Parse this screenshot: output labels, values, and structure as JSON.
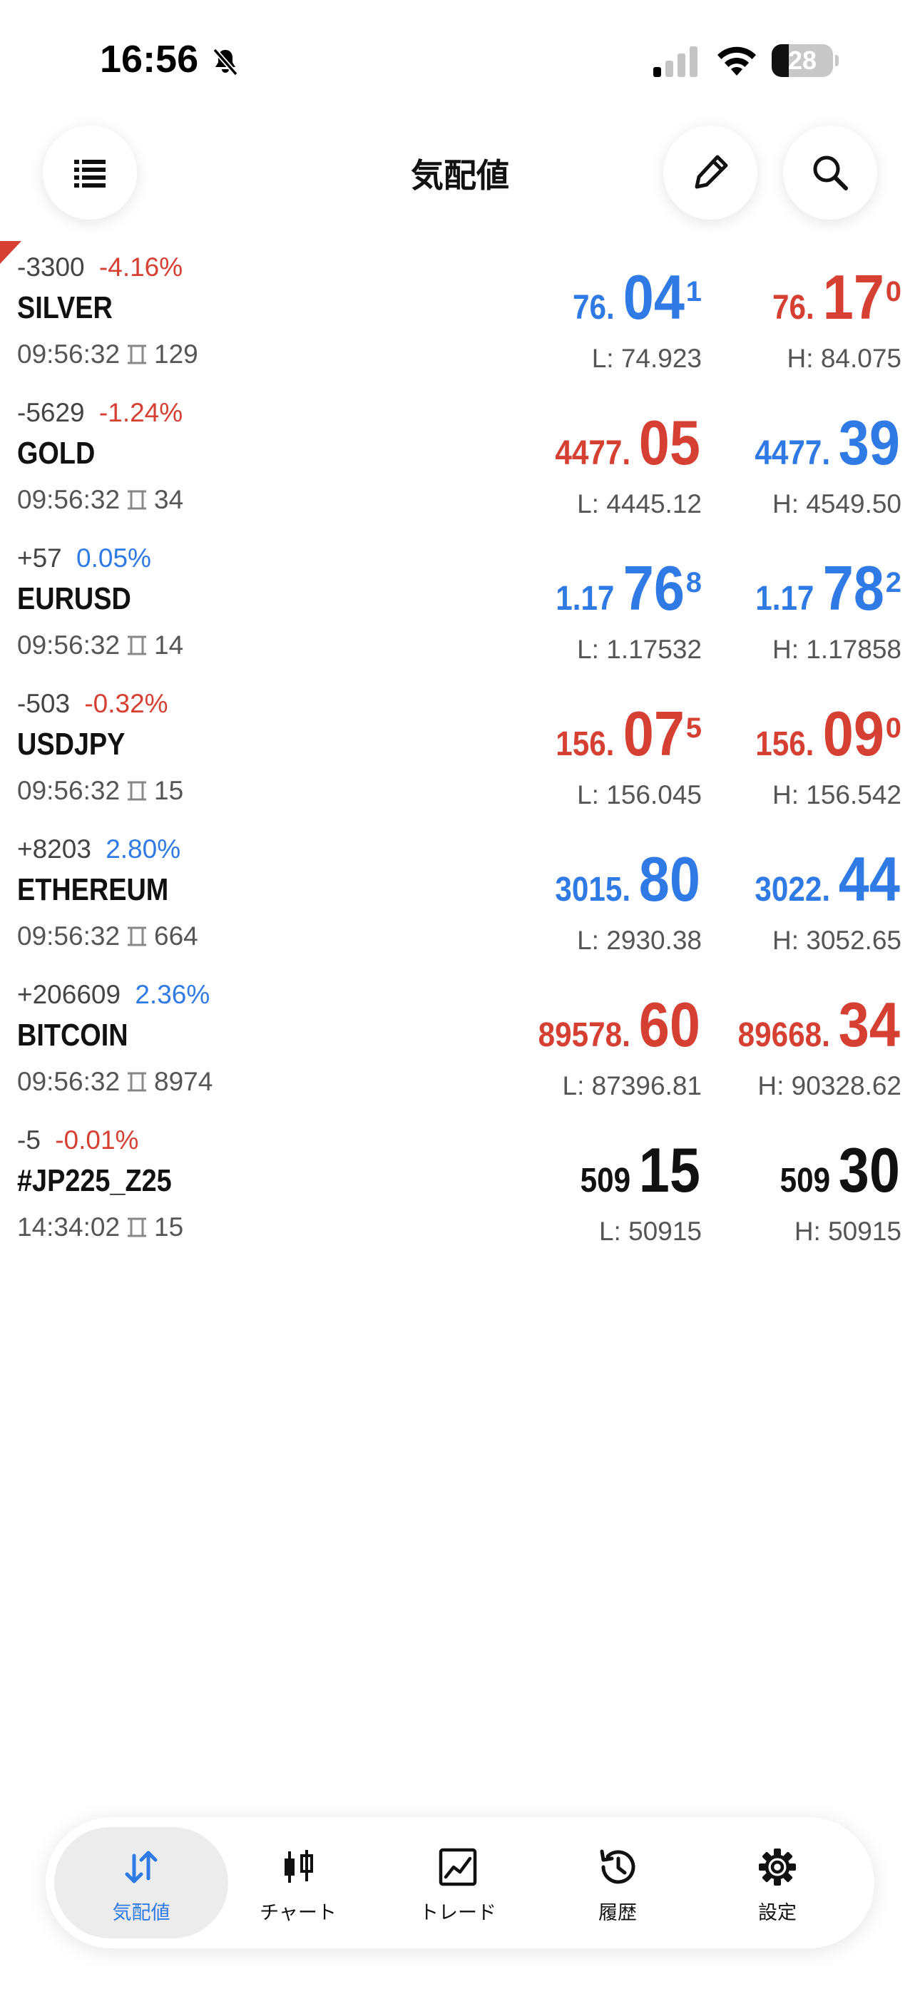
{
  "status_bar": {
    "time": "16:56",
    "battery": "28",
    "battery_level": 0.28,
    "signal_bars_active": 1,
    "icons": [
      "bell-slash-icon",
      "cellular-signal-icon",
      "wifi-icon",
      "battery-icon"
    ]
  },
  "header": {
    "title": "気配値",
    "icons": [
      "list-menu-icon",
      "pencil-icon",
      "search-icon"
    ]
  },
  "colors": {
    "up": "#2f7ae5",
    "down": "#d64032",
    "neutral": "#111111",
    "accent": "#2f7ae5",
    "corner_marker": "#d64032"
  },
  "quotes": [
    {
      "change_points": "-3300",
      "change_percent": "-4.16%",
      "change_dir": "down",
      "symbol": "SILVER",
      "time": "09:56:32",
      "spread": "129",
      "bid": {
        "small": "76.",
        "big": "04",
        "sup": "1",
        "dir": "up"
      },
      "ask": {
        "small": "76.",
        "big": "17",
        "sup": "0",
        "dir": "down"
      },
      "low": "L: 74.923",
      "high": "H: 84.075"
    },
    {
      "change_points": "-5629",
      "change_percent": "-1.24%",
      "change_dir": "down",
      "symbol": "GOLD",
      "time": "09:56:32",
      "spread": "34",
      "bid": {
        "small": "4477.",
        "big": "05",
        "sup": "",
        "dir": "down"
      },
      "ask": {
        "small": "4477.",
        "big": "39",
        "sup": "",
        "dir": "up"
      },
      "low": "L: 4445.12",
      "high": "H: 4549.50"
    },
    {
      "change_points": "+57",
      "change_percent": "0.05%",
      "change_dir": "up",
      "symbol": "EURUSD",
      "time": "09:56:32",
      "spread": "14",
      "bid": {
        "small": "1.17",
        "big": "76",
        "sup": "8",
        "dir": "up"
      },
      "ask": {
        "small": "1.17",
        "big": "78",
        "sup": "2",
        "dir": "up"
      },
      "low": "L: 1.17532",
      "high": "H: 1.17858"
    },
    {
      "change_points": "-503",
      "change_percent": "-0.32%",
      "change_dir": "down",
      "symbol": "USDJPY",
      "time": "09:56:32",
      "spread": "15",
      "bid": {
        "small": "156.",
        "big": "07",
        "sup": "5",
        "dir": "down"
      },
      "ask": {
        "small": "156.",
        "big": "09",
        "sup": "0",
        "dir": "down"
      },
      "low": "L: 156.045",
      "high": "H: 156.542"
    },
    {
      "change_points": "+8203",
      "change_percent": "2.80%",
      "change_dir": "up",
      "symbol": "ETHEREUM",
      "time": "09:56:32",
      "spread": "664",
      "bid": {
        "small": "3015.",
        "big": "80",
        "sup": "",
        "dir": "up"
      },
      "ask": {
        "small": "3022.",
        "big": "44",
        "sup": "",
        "dir": "up"
      },
      "low": "L: 2930.38",
      "high": "H: 3052.65"
    },
    {
      "change_points": "+206609",
      "change_percent": "2.36%",
      "change_dir": "up",
      "symbol": "BITCOIN",
      "time": "09:56:32",
      "spread": "8974",
      "bid": {
        "small": "89578.",
        "big": "60",
        "sup": "",
        "dir": "down"
      },
      "ask": {
        "small": "89668.",
        "big": "34",
        "sup": "",
        "dir": "down"
      },
      "low": "L: 87396.81",
      "high": "H: 90328.62"
    },
    {
      "change_points": "-5",
      "change_percent": "-0.01%",
      "change_dir": "down",
      "symbol": "#JP225_Z25",
      "time": "14:34:02",
      "spread": "15",
      "bid": {
        "small": "509",
        "big": "15",
        "sup": "",
        "dir": "neutral"
      },
      "ask": {
        "small": "509",
        "big": "30",
        "sup": "",
        "dir": "neutral"
      },
      "low": "L: 50915",
      "high": "H: 50915"
    }
  ],
  "tab_bar": {
    "active_index": 0,
    "tabs": [
      {
        "label": "気配値",
        "icon": "quotes-arrows-icon"
      },
      {
        "label": "チャート",
        "icon": "candlestick-chart-icon"
      },
      {
        "label": "トレード",
        "icon": "trade-chart-icon"
      },
      {
        "label": "履歴",
        "icon": "history-clock-icon"
      },
      {
        "label": "設定",
        "icon": "settings-gear-icon"
      }
    ]
  }
}
